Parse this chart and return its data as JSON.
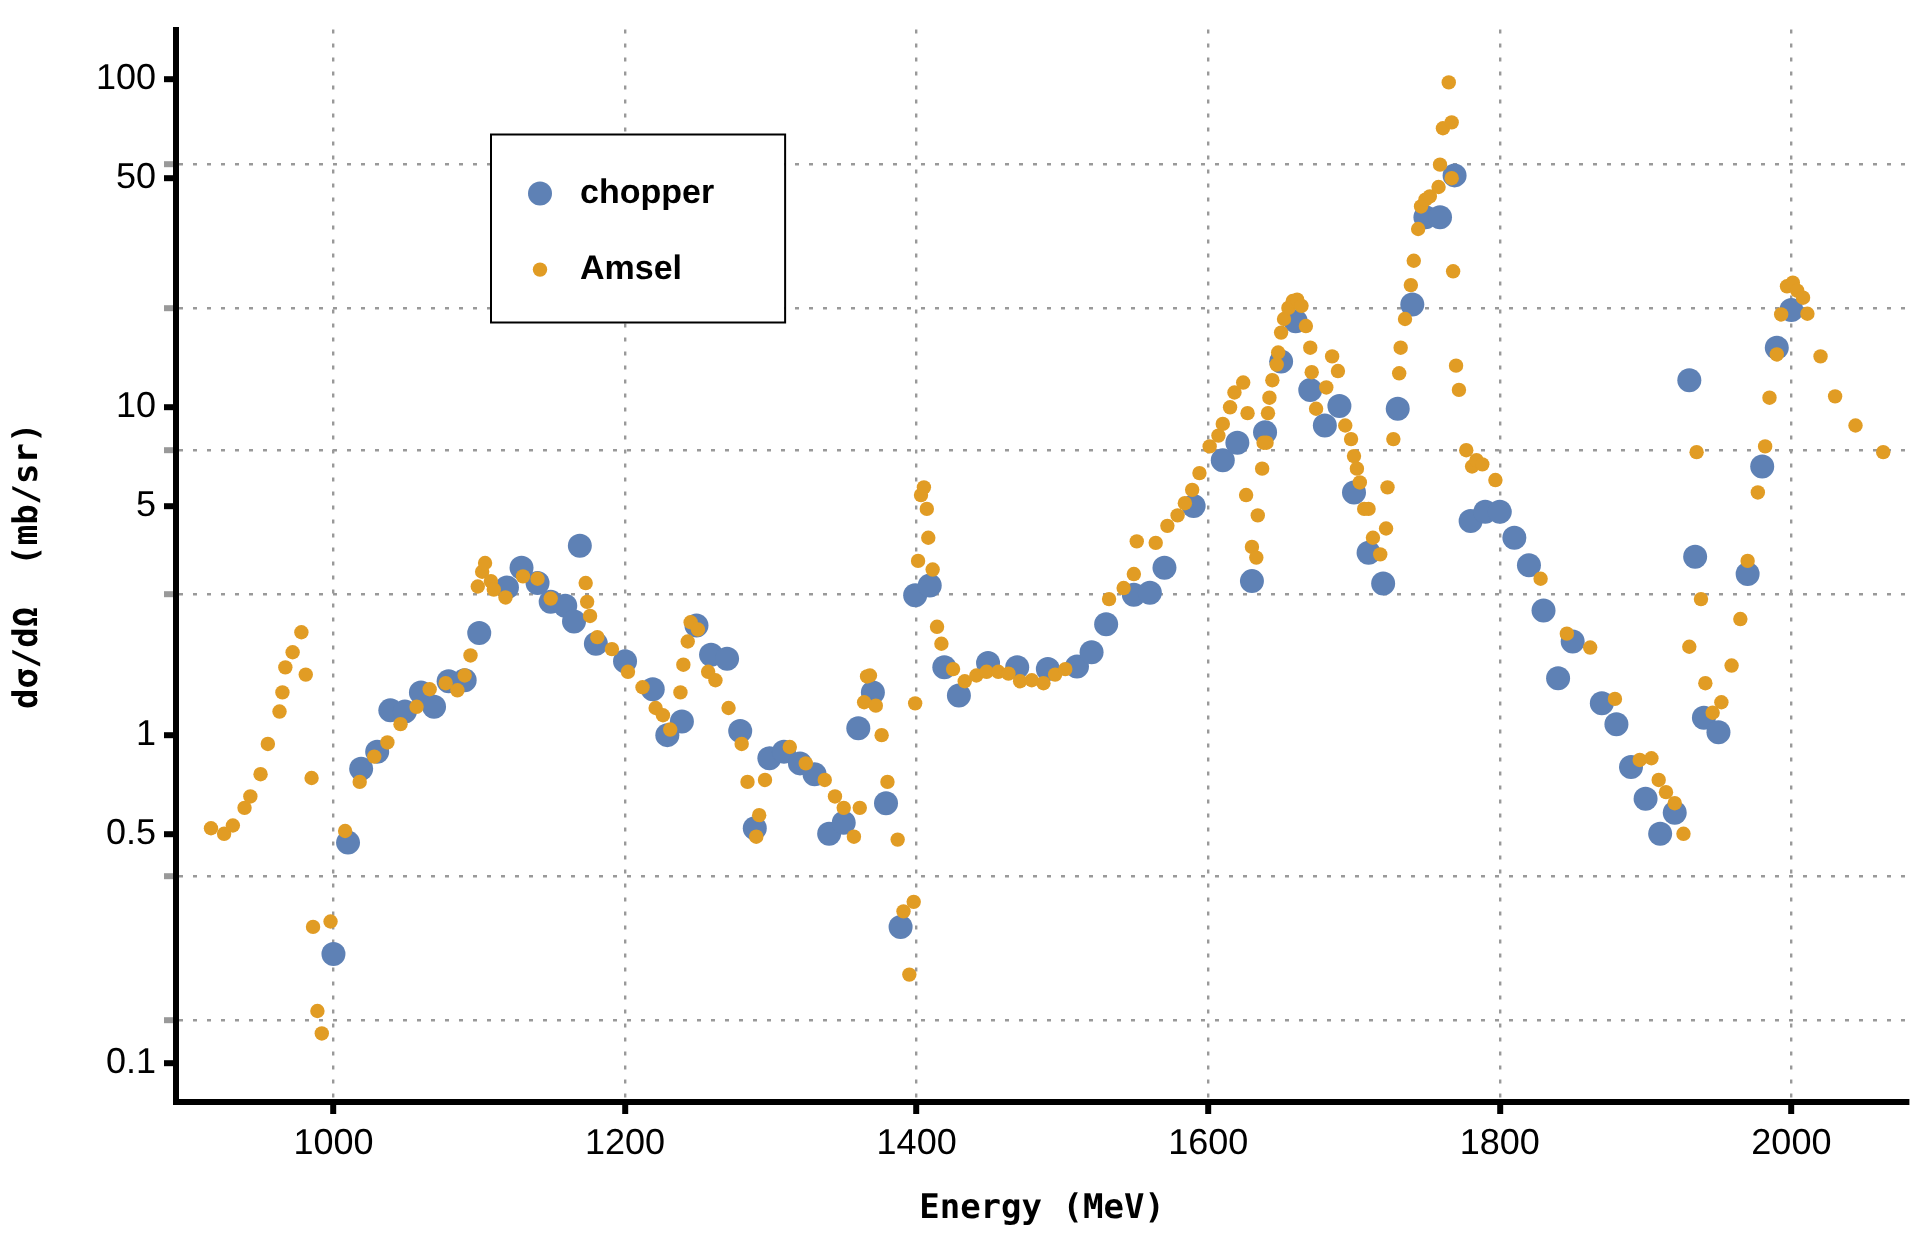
{
  "chart_data": {
    "type": "scatter",
    "xlabel": "Energy (MeV)",
    "ylabel": "dσ/dΩ  (mb/sr)",
    "log": "y",
    "grid": true,
    "legend": "top left",
    "marker": "circle",
    "xlim": [
      892,
      2080
    ],
    "xticks": [
      1000,
      1200,
      1400,
      1600,
      1800,
      2000
    ],
    "ylim": [
      0.076,
      142
    ],
    "yticks": [
      0.1,
      0.5,
      1,
      5,
      10,
      50,
      100,
      {
        "value": 0.135,
        "label": null
      },
      {
        "value": 0.37,
        "label": null
      },
      {
        "value": 2.7,
        "label": null
      },
      {
        "value": 7.4,
        "label": null
      },
      {
        "value": 20,
        "label": null
      },
      {
        "value": 55,
        "label": null
      }
    ],
    "series": [
      {
        "name": "chopper",
        "color": "#5e81b5",
        "x": [
          1000,
          1010,
          1019,
          1030,
          1039,
          1049,
          1060,
          1069,
          1079,
          1090,
          1100,
          1119,
          1129,
          1140,
          1149,
          1159,
          1165,
          1169,
          1180,
          1200,
          1219,
          1229,
          1239,
          1249,
          1259,
          1270,
          1279,
          1289,
          1299,
          1309,
          1320,
          1330,
          1340,
          1350,
          1360,
          1370,
          1379,
          1389,
          1399,
          1409,
          1419,
          1429,
          1449,
          1469,
          1490,
          1510,
          1520,
          1530,
          1549,
          1560,
          1570,
          1590,
          1610,
          1620,
          1630,
          1639,
          1650,
          1660,
          1670,
          1680,
          1690,
          1700,
          1710,
          1720,
          1730,
          1740,
          1749,
          1759,
          1769,
          1780,
          1790,
          1800,
          1810,
          1820,
          1830,
          1840,
          1850,
          1870,
          1880,
          1890,
          1900,
          1910,
          1920,
          1930,
          1934,
          1940,
          1950,
          1970,
          1980,
          1990,
          2000
        ],
        "values": [
          0.215,
          0.47,
          0.79,
          0.89,
          1.19,
          1.18,
          1.35,
          1.22,
          1.46,
          1.47,
          2.05,
          2.82,
          3.24,
          2.91,
          2.55,
          2.48,
          2.22,
          3.78,
          1.9,
          1.68,
          1.38,
          1.0,
          1.1,
          2.16,
          1.76,
          1.71,
          1.03,
          0.52,
          0.85,
          0.89,
          0.82,
          0.76,
          0.5,
          0.54,
          1.05,
          1.35,
          0.62,
          0.26,
          2.67,
          2.86,
          1.61,
          1.32,
          1.66,
          1.61,
          1.59,
          1.62,
          1.79,
          2.18,
          2.68,
          2.72,
          3.24,
          5.0,
          6.9,
          7.8,
          2.95,
          8.4,
          13.8,
          18.3,
          11.3,
          8.8,
          10.1,
          5.5,
          3.6,
          2.9,
          9.9,
          20.6,
          38,
          38,
          51,
          4.5,
          4.8,
          4.8,
          4.0,
          3.3,
          2.4,
          1.49,
          1.93,
          1.25,
          1.08,
          0.8,
          0.64,
          0.5,
          0.58,
          12.1,
          3.5,
          1.13,
          1.02,
          3.1,
          6.6,
          15.2,
          19.8
        ]
      },
      {
        "name": "Amsel",
        "color": "#e19c24",
        "x": [
          916,
          925,
          931,
          939,
          943,
          950,
          955,
          963,
          965,
          967,
          972,
          978,
          981,
          985,
          986,
          989,
          992,
          998,
          1008,
          1018,
          1028,
          1037,
          1046,
          1057,
          1066,
          1077,
          1085,
          1090,
          1094,
          1099,
          1102,
          1104,
          1108,
          1110,
          1118,
          1130,
          1140,
          1149,
          1173,
          1174,
          1176,
          1181,
          1191,
          1202,
          1212,
          1221,
          1226,
          1231,
          1238,
          1240,
          1243,
          1245,
          1250,
          1257,
          1262,
          1271,
          1280,
          1284,
          1290,
          1292,
          1296,
          1313,
          1324,
          1337,
          1344,
          1350,
          1357,
          1361,
          1364,
          1366,
          1368,
          1372,
          1376,
          1380,
          1387,
          1391,
          1395,
          1398,
          1399,
          1401,
          1403,
          1405,
          1407,
          1408,
          1411,
          1414,
          1417,
          1425,
          1433,
          1441,
          1448,
          1456,
          1463,
          1471,
          1479,
          1487,
          1495,
          1502,
          1532,
          1542,
          1549,
          1551,
          1564,
          1572,
          1579,
          1584,
          1589,
          1594,
          1601,
          1607,
          1610,
          1615,
          1618,
          1624,
          1626,
          1627,
          1630,
          1633,
          1634,
          1637,
          1638,
          1640,
          1641,
          1642,
          1644,
          1647,
          1648,
          1650,
          1652,
          1655,
          1658,
          1661,
          1664,
          1667,
          1670,
          1671,
          1674,
          1681,
          1685,
          1689,
          1694,
          1698,
          1700,
          1702,
          1704,
          1707,
          1710,
          1713,
          1718,
          1722,
          1723,
          1727,
          1731,
          1732,
          1735,
          1739,
          1741,
          1744,
          1746,
          1749,
          1752,
          1758,
          1759,
          1761,
          1765,
          1767,
          1767,
          1768,
          1770,
          1772,
          1777,
          1781,
          1784,
          1788,
          1797,
          1828,
          1846,
          1862,
          1879,
          1896,
          1904,
          1909,
          1914,
          1920,
          1926,
          1930,
          1935,
          1938,
          1941,
          1946,
          1952,
          1959,
          1965,
          1970,
          1977,
          1982,
          1985,
          1990,
          1993,
          1997,
          2001,
          2004,
          2008,
          2011,
          2020,
          2030,
          2044,
          2063
        ],
        "values": [
          0.52,
          0.5,
          0.53,
          0.6,
          0.65,
          0.76,
          0.94,
          1.18,
          1.35,
          1.61,
          1.79,
          2.06,
          1.53,
          0.74,
          0.26,
          0.144,
          0.123,
          0.27,
          0.51,
          0.72,
          0.86,
          0.95,
          1.08,
          1.22,
          1.38,
          1.44,
          1.37,
          1.52,
          1.75,
          2.84,
          3.15,
          3.35,
          2.95,
          2.78,
          2.63,
          3.05,
          3.0,
          2.61,
          2.91,
          2.55,
          2.31,
          1.99,
          1.83,
          1.56,
          1.4,
          1.21,
          1.15,
          1.04,
          1.35,
          1.64,
          1.93,
          2.21,
          2.1,
          1.56,
          1.47,
          1.21,
          0.94,
          0.72,
          0.49,
          0.57,
          0.73,
          0.92,
          0.82,
          0.73,
          0.65,
          0.6,
          0.49,
          0.6,
          1.26,
          1.51,
          1.52,
          1.23,
          1.0,
          0.72,
          0.48,
          0.29,
          0.186,
          0.31,
          1.25,
          3.4,
          5.4,
          5.7,
          4.9,
          4.0,
          3.2,
          2.14,
          1.9,
          1.59,
          1.46,
          1.52,
          1.56,
          1.56,
          1.54,
          1.46,
          1.47,
          1.44,
          1.53,
          1.59,
          2.6,
          2.81,
          3.1,
          3.9,
          3.86,
          4.35,
          4.68,
          5.1,
          5.6,
          6.3,
          7.6,
          8.2,
          8.9,
          10.0,
          11.1,
          11.9,
          5.4,
          9.6,
          3.75,
          3.48,
          4.68,
          6.5,
          7.8,
          7.8,
          9.6,
          10.7,
          12.1,
          13.5,
          14.7,
          16.9,
          18.6,
          20.1,
          21.1,
          21.3,
          20.4,
          17.7,
          15.2,
          12.8,
          9.9,
          11.5,
          14.3,
          12.9,
          8.8,
          8.0,
          7.1,
          6.5,
          5.9,
          4.9,
          4.9,
          4.0,
          3.56,
          4.27,
          5.7,
          8.0,
          12.7,
          15.2,
          18.6,
          23.6,
          28,
          35,
          41,
          43,
          44,
          47,
          55,
          71,
          98,
          74,
          50,
          26,
          13.4,
          11.3,
          7.4,
          6.6,
          6.9,
          6.7,
          6.0,
          3.0,
          2.04,
          1.85,
          1.29,
          0.84,
          0.85,
          0.73,
          0.67,
          0.62,
          0.5,
          1.86,
          7.3,
          2.6,
          1.44,
          1.17,
          1.26,
          1.63,
          2.26,
          3.4,
          5.5,
          7.6,
          10.7,
          14.5,
          19.2,
          23.4,
          24,
          22.7,
          21.6,
          19.3,
          14.3,
          10.8,
          8.8,
          7.3
        ]
      }
    ]
  }
}
